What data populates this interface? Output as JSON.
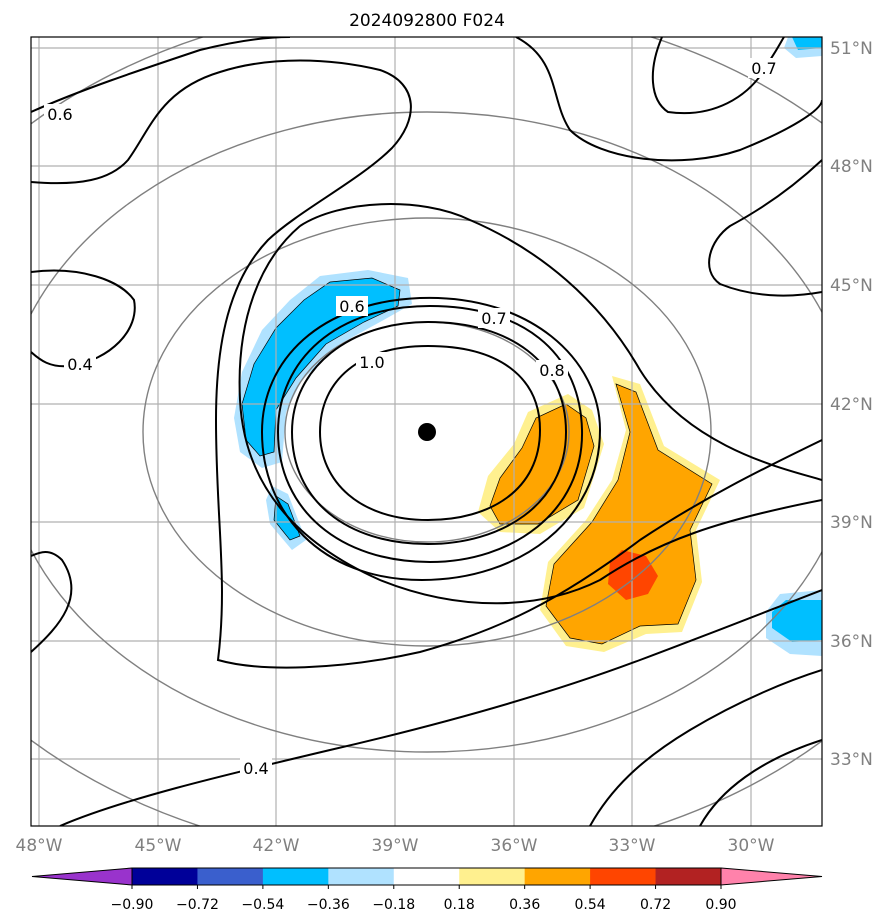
{
  "title": "2024092800 F024",
  "longitude_ticks": [
    "48°W",
    "45°W",
    "42°W",
    "39°W",
    "36°W",
    "33°W",
    "30°W"
  ],
  "latitude_ticks": [
    "51°N",
    "48°N",
    "45°N",
    "42°N",
    "39°N",
    "36°N",
    "33°N"
  ],
  "colorbar": {
    "tick_labels": [
      "−0.90",
      "−0.72",
      "−0.54",
      "−0.36",
      "−0.18",
      "0.18",
      "0.36",
      "0.54",
      "0.72",
      "0.90"
    ],
    "colors": [
      "#9933cc",
      "#000099",
      "#3a5fcd",
      "#00bfff",
      "#b0e2ff",
      "#ffffff",
      "#fff08f",
      "#ffa500",
      "#ff4500",
      "#b22222",
      "#ff82ab"
    ],
    "extend": "both"
  },
  "contour_labels": [
    "0.6",
    "0.4",
    "0.7",
    "0.6",
    "0.7",
    "0.8",
    "1.0",
    "0.4"
  ],
  "storm_center_marker": "black-dot",
  "colors": {
    "contour_line": "#000000",
    "range_circle": "#808080",
    "grid": "#b0b0b0"
  }
}
